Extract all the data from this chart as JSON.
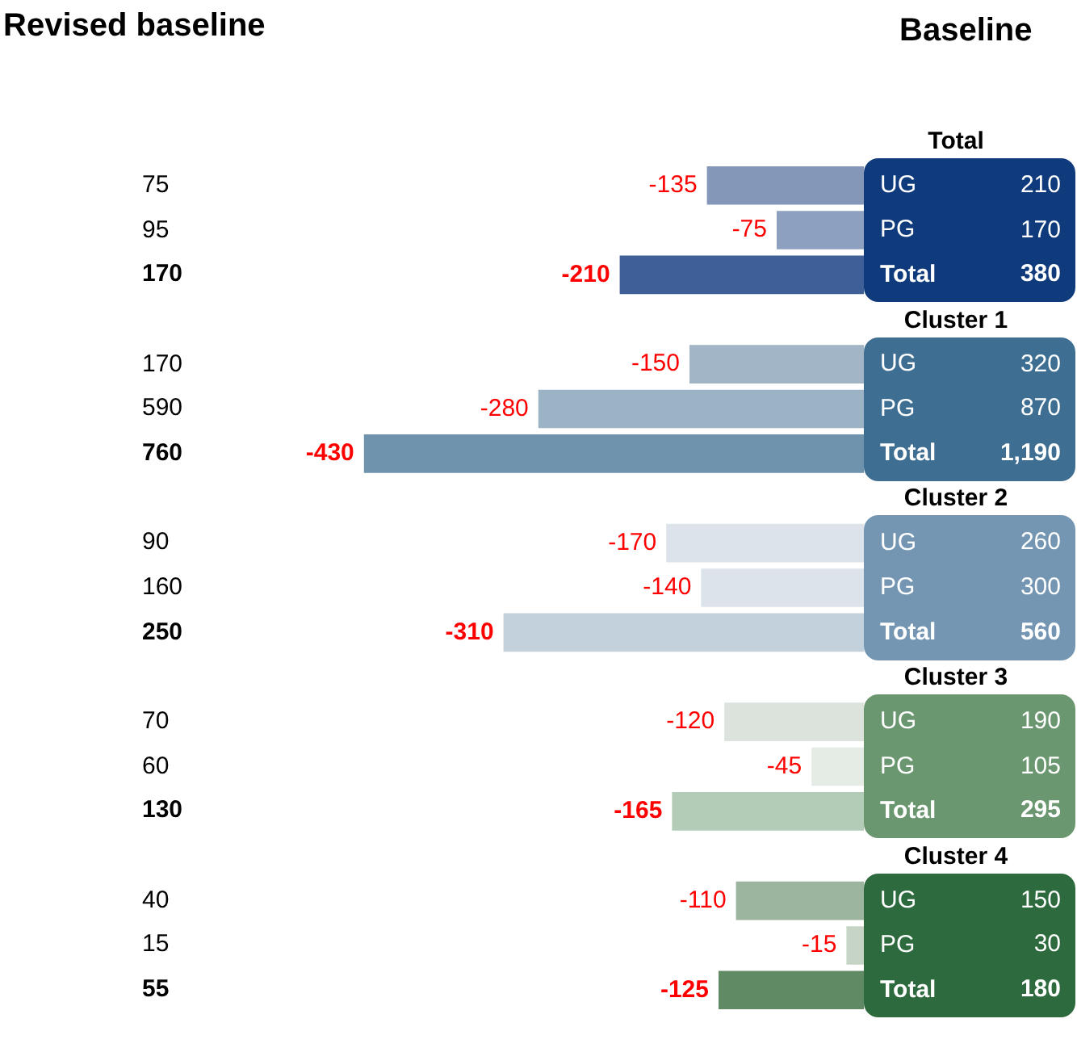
{
  "chart_data": [
    {
      "type": "other",
      "title": "Revised baseline",
      "annotations": [
        "75",
        "95",
        "170",
        "170",
        "590",
        "760",
        "90",
        "160",
        "250",
        "70",
        "60",
        "130",
        "40",
        "15",
        "55"
      ]
    },
    {
      "type": "bar",
      "orientation": "horizontal",
      "categories": [
        "UG",
        "PG",
        "Total",
        null,
        "UG",
        "PG",
        "Total",
        null,
        "UG",
        "PG",
        "Total",
        null,
        "UG",
        "PG",
        "Total",
        null,
        "UG",
        "PG",
        "Total"
      ],
      "values": [
        -135,
        -75,
        -210,
        null,
        -150,
        -280,
        -430,
        null,
        -170,
        -140,
        -310,
        null,
        -120,
        -45,
        -165,
        null,
        -110,
        -15,
        -125
      ],
      "colors": [
        "#8497b8",
        "#8da0c0",
        "#3f5f98",
        null,
        "#a2b5c6",
        "#9cb3c5",
        "#6f93ad",
        null,
        "#dce3ea",
        "#dde3ea",
        "#c3d1dc",
        null,
        "#dbe3dc",
        "#e5ebe5",
        "#b3ccb8",
        null,
        "#9bb59f",
        "#c6d4c6",
        "#5f8a63"
      ],
      "data_labels": true,
      "tick_labels": "y",
      "legend": false
    },
    {
      "type": "other",
      "title": "Baseline",
      "categories": [
        "Total",
        "Cluster 1",
        "Cluster 2",
        "Cluster 3",
        "Cluster 4"
      ],
      "annotations": [
        "210",
        "170",
        "380",
        "320",
        "870",
        "1,190",
        "260",
        "300",
        "560",
        "190",
        "105",
        "295",
        "150",
        "30",
        "180"
      ]
    }
  ]
}
